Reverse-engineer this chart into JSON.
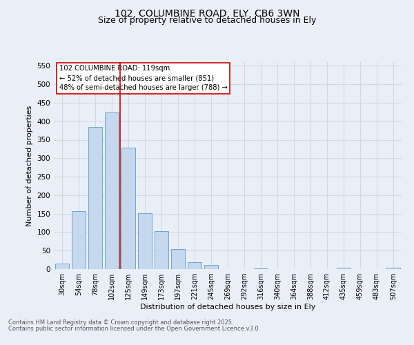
{
  "title_line1": "102, COLUMBINE ROAD, ELY, CB6 3WN",
  "title_line2": "Size of property relative to detached houses in Ely",
  "xlabel": "Distribution of detached houses by size in Ely",
  "ylabel": "Number of detached properties",
  "bar_labels": [
    "30sqm",
    "54sqm",
    "78sqm",
    "102sqm",
    "125sqm",
    "149sqm",
    "173sqm",
    "197sqm",
    "221sqm",
    "245sqm",
    "269sqm",
    "292sqm",
    "316sqm",
    "340sqm",
    "364sqm",
    "388sqm",
    "412sqm",
    "435sqm",
    "459sqm",
    "483sqm",
    "507sqm"
  ],
  "bar_values": [
    15,
    157,
    385,
    424,
    329,
    152,
    102,
    55,
    19,
    11,
    0,
    0,
    2,
    0,
    0,
    0,
    0,
    4,
    0,
    0,
    3
  ],
  "bar_color": "#c5d8ed",
  "bar_edge_color": "#5b9bd5",
  "grid_color": "#d0d8e8",
  "annotation_text": "102 COLUMBINE ROAD: 119sqm\n← 52% of detached houses are smaller (851)\n48% of semi-detached houses are larger (788) →",
  "vline_color": "#cc0000",
  "ylim": [
    0,
    560
  ],
  "yticks": [
    0,
    50,
    100,
    150,
    200,
    250,
    300,
    350,
    400,
    450,
    500,
    550
  ],
  "footer_line1": "Contains HM Land Registry data © Crown copyright and database right 2025.",
  "footer_line2": "Contains public sector information licensed under the Open Government Licence v3.0.",
  "bg_color": "#eaeff7",
  "plot_bg_color": "#eaeff7"
}
